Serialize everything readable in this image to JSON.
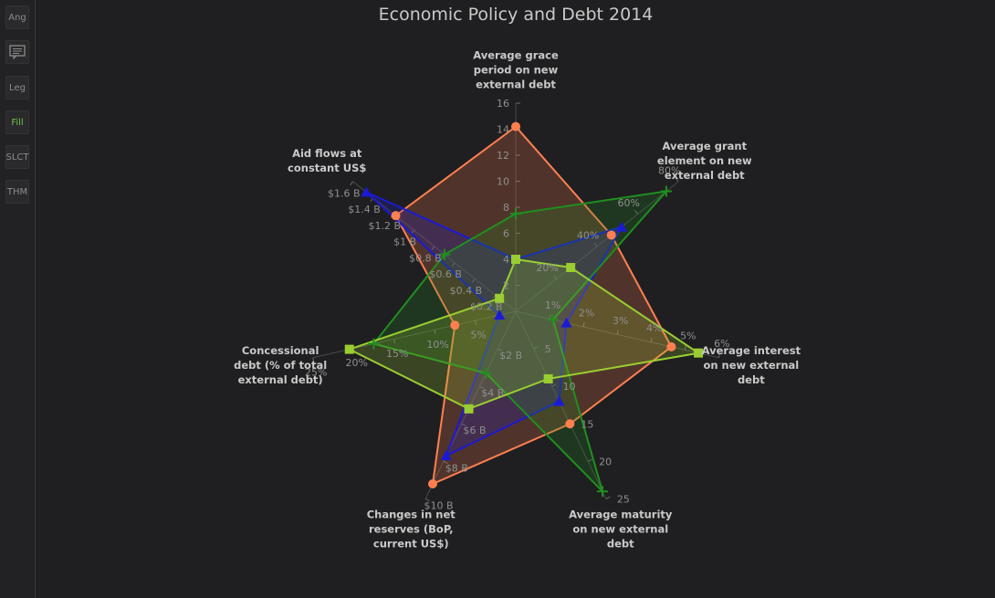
{
  "toolbar": {
    "buttons": [
      {
        "label": "Ang",
        "active": false
      },
      {
        "label": "",
        "icon": "comment-icon",
        "active": false
      },
      {
        "label": "Leg",
        "active": false
      },
      {
        "label": "Fill",
        "active": true
      },
      {
        "label": "SLCT",
        "active": false
      },
      {
        "label": "THM",
        "active": false
      }
    ]
  },
  "chart_data": {
    "type": "radar",
    "title": "Economic Policy and Debt 2014",
    "fill": true,
    "axes": [
      {
        "label": [
          "Average grace",
          "period on new",
          "external debt"
        ],
        "max": 16,
        "ticks": [
          {
            "v": 2,
            "t": "2"
          },
          {
            "v": 4,
            "t": "4"
          },
          {
            "v": 6,
            "t": "6"
          },
          {
            "v": 8,
            "t": "8"
          },
          {
            "v": 10,
            "t": "10"
          },
          {
            "v": 12,
            "t": "12"
          },
          {
            "v": 14,
            "t": "14"
          },
          {
            "v": 16,
            "t": "16"
          }
        ]
      },
      {
        "label": [
          "Average grant",
          "element on new",
          "external debt"
        ],
        "max": 80,
        "ticks": [
          {
            "v": 20,
            "t": "20%"
          },
          {
            "v": 40,
            "t": "40%"
          },
          {
            "v": 60,
            "t": "60%"
          },
          {
            "v": 80,
            "t": "80%"
          }
        ]
      },
      {
        "label": [
          "Average interest",
          "on new external",
          "debt"
        ],
        "max": 6,
        "ticks": [
          {
            "v": 1,
            "t": "1%"
          },
          {
            "v": 2,
            "t": "2%"
          },
          {
            "v": 3,
            "t": "3%"
          },
          {
            "v": 4,
            "t": "4%"
          },
          {
            "v": 5,
            "t": "5%"
          },
          {
            "v": 6,
            "t": "6%"
          }
        ]
      },
      {
        "label": [
          "Average maturity",
          "on new external",
          "debt"
        ],
        "max": 25,
        "ticks": [
          {
            "v": 5,
            "t": "5"
          },
          {
            "v": 10,
            "t": "10"
          },
          {
            "v": 15,
            "t": "15"
          },
          {
            "v": 20,
            "t": "20"
          },
          {
            "v": 25,
            "t": "25"
          }
        ]
      },
      {
        "label": [
          "Changes in net",
          "reserves (BoP,",
          "current US$)"
        ],
        "max": 10,
        "ticks": [
          {
            "v": 2,
            "t": "$2 B"
          },
          {
            "v": 4,
            "t": "$4 B"
          },
          {
            "v": 6,
            "t": "$6 B"
          },
          {
            "v": 8,
            "t": "$8 B"
          },
          {
            "v": 10,
            "t": "$10 B"
          }
        ]
      },
      {
        "label": [
          "Concessional",
          "debt (% of total",
          "external debt)"
        ],
        "max": 25,
        "ticks": [
          {
            "v": 5,
            "t": "5%"
          },
          {
            "v": 10,
            "t": "10%"
          },
          {
            "v": 15,
            "t": "15%"
          },
          {
            "v": 20,
            "t": "20%"
          },
          {
            "v": 25,
            "t": "25%"
          }
        ]
      },
      {
        "label": [
          "Aid flows at",
          "constant US$"
        ],
        "max": 1.6,
        "ticks": [
          {
            "v": 0.2,
            "t": "$0.2 B"
          },
          {
            "v": 0.4,
            "t": "$0.4 B"
          },
          {
            "v": 0.6,
            "t": "$0.6 B"
          },
          {
            "v": 0.8,
            "t": "$0.8 B"
          },
          {
            "v": 1.0,
            "t": "$1 B"
          },
          {
            "v": 1.2,
            "t": "$1.2 B"
          },
          {
            "v": 1.4,
            "t": "$1.4 B"
          },
          {
            "v": 1.6,
            "t": "$1.6 B"
          }
        ]
      }
    ],
    "series": [
      {
        "color": "#ff7f50",
        "marker": "circle",
        "values": [
          14.2,
          47,
          4.6,
          15,
          9.2,
          7.5,
          1.18
        ]
      },
      {
        "color": "#1a1ad6",
        "marker": "triangle",
        "values": [
          4.0,
          52,
          1.5,
          12,
          7.7,
          2.0,
          1.47
        ]
      },
      {
        "color": "#1f8f1f",
        "marker": "plus",
        "values": [
          7.5,
          74,
          1.1,
          24,
          3.3,
          17.5,
          0.7
        ]
      },
      {
        "color": "#9acd32",
        "marker": "square",
        "values": [
          4.0,
          27,
          5.4,
          9,
          5.2,
          20.5,
          0.16
        ]
      }
    ]
  }
}
